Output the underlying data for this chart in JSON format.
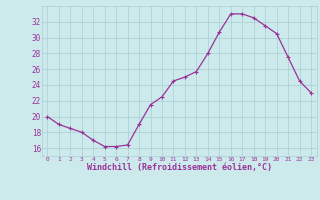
{
  "x": [
    0,
    1,
    2,
    3,
    4,
    5,
    6,
    7,
    8,
    9,
    10,
    11,
    12,
    13,
    14,
    15,
    16,
    17,
    18,
    19,
    20,
    21,
    22,
    23
  ],
  "y": [
    20.0,
    19.0,
    18.5,
    18.0,
    17.0,
    16.2,
    16.2,
    16.4,
    19.0,
    21.5,
    22.5,
    24.5,
    25.0,
    25.7,
    28.0,
    30.7,
    33.0,
    33.0,
    32.5,
    31.5,
    30.5,
    27.5,
    24.5,
    23.0
  ],
  "line_color": "#993399",
  "marker": "+",
  "marker_size": 3,
  "linewidth": 0.9,
  "xlabel": "Windchill (Refroidissement éolien,°C)",
  "xlabel_fontsize": 6,
  "xtick_labels": [
    "0",
    "1",
    "2",
    "3",
    "4",
    "5",
    "6",
    "7",
    "8",
    "9",
    "10",
    "11",
    "12",
    "13",
    "14",
    "15",
    "16",
    "17",
    "18",
    "19",
    "20",
    "21",
    "22",
    "23"
  ],
  "ytick_labels": [
    "16",
    "18",
    "20",
    "22",
    "24",
    "26",
    "28",
    "30",
    "32"
  ],
  "ylim": [
    15.0,
    34.0
  ],
  "xlim": [
    -0.5,
    23.5
  ],
  "background_color": "#cce9ec",
  "grid_color": "#aacdd2",
  "tick_color": "#993399",
  "label_color": "#993399"
}
